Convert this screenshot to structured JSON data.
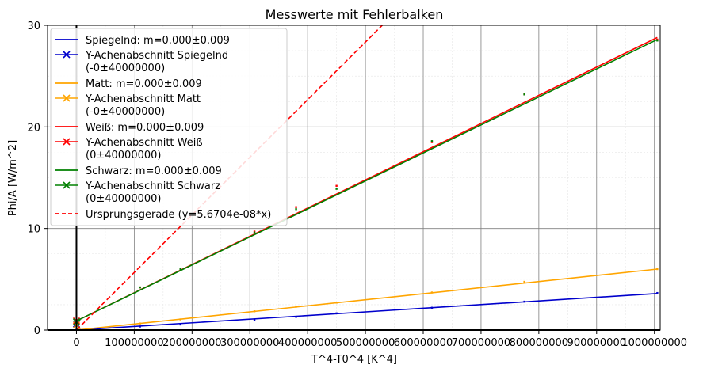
{
  "chart_data": {
    "type": "line",
    "title": "Messwerte mit Fehlerbalken",
    "xlabel": "T^4-T0^4 [K^4]",
    "ylabel": "Phi/A [W/m^2]",
    "xlim": [
      -50000000,
      1010000000
    ],
    "ylim": [
      0,
      30
    ],
    "x_ticks": [
      0,
      100000000,
      200000000,
      300000000,
      400000000,
      500000000,
      600000000,
      700000000,
      800000000,
      900000000,
      1000000000
    ],
    "x_tick_labels": [
      "0",
      "100000000",
      "200000000",
      "300000000",
      "400000000",
      "500000000",
      "600000000",
      "700000000",
      "800000000",
      "900000000",
      "1000000000"
    ],
    "y_ticks": [
      0,
      10,
      20,
      30
    ],
    "y_tick_labels": [
      "0",
      "10",
      "20",
      "30"
    ],
    "grid": true,
    "legend_position": "top-left",
    "x": [
      0,
      5000000,
      110000000,
      180000000,
      308000000,
      380000000,
      450000000,
      615000000,
      775000000,
      1005000000
    ],
    "series": [
      {
        "name": "Spiegelnd: m=0.000±0.009",
        "color": "#0000cc",
        "style": "solid",
        "fit": [
          [
            0,
            0.0
          ],
          [
            1005000000,
            3.6
          ]
        ],
        "points": [
          0.0,
          0.05,
          0.35,
          0.55,
          1.0,
          1.3,
          1.65,
          2.2,
          2.8,
          3.65
        ]
      },
      {
        "name": "Y-Achenabschnitt Spiegelnd\n(-0±40000000)",
        "color": "#0000cc",
        "style": "x-marker",
        "marker": [
          0,
          0.6
        ]
      },
      {
        "name": "Matt: m=0.000±0.009",
        "color": "#ffa500",
        "style": "solid",
        "fit": [
          [
            0,
            0.0
          ],
          [
            1005000000,
            6.0
          ]
        ],
        "points": [
          0.0,
          0.05,
          0.65,
          1.05,
          1.85,
          2.3,
          2.7,
          3.7,
          4.75,
          6.0
        ]
      },
      {
        "name": "Y-Achenabschnitt Matt\n(-0±40000000)",
        "color": "#ffa500",
        "style": "x-marker",
        "marker": [
          0,
          0.5
        ]
      },
      {
        "name": "Weiß: m=0.000±0.009",
        "color": "#ff0000",
        "style": "solid",
        "fit": [
          [
            0,
            0.9
          ],
          [
            1005000000,
            28.8
          ]
        ],
        "points": [
          0.9,
          1.05,
          4.2,
          6.0,
          9.7,
          12.1,
          14.2,
          18.5,
          23.2,
          28.6
        ]
      },
      {
        "name": "Y-Achenabschnitt Weiß\n(0±40000000)",
        "color": "#ff0000",
        "style": "x-marker",
        "marker": [
          0,
          0.9
        ]
      },
      {
        "name": "Schwarz: m=0.000±0.009",
        "color": "#008000",
        "style": "solid",
        "fit": [
          [
            0,
            0.9
          ],
          [
            1005000000,
            28.6
          ]
        ],
        "points": [
          0.9,
          1.0,
          4.2,
          6.0,
          9.6,
          11.9,
          13.9,
          18.6,
          23.2,
          28.5
        ]
      },
      {
        "name": "Y-Achenabschnitt Schwarz\n(0±40000000)",
        "color": "#008000",
        "style": "x-marker",
        "marker": [
          0,
          0.8
        ]
      },
      {
        "name": "Ursprungsgerade (y=5.6704e-08*x)",
        "color": "#ff0000",
        "style": "dashed",
        "fit": [
          [
            0,
            0.0
          ],
          [
            529100000,
            30.0
          ]
        ]
      }
    ]
  }
}
